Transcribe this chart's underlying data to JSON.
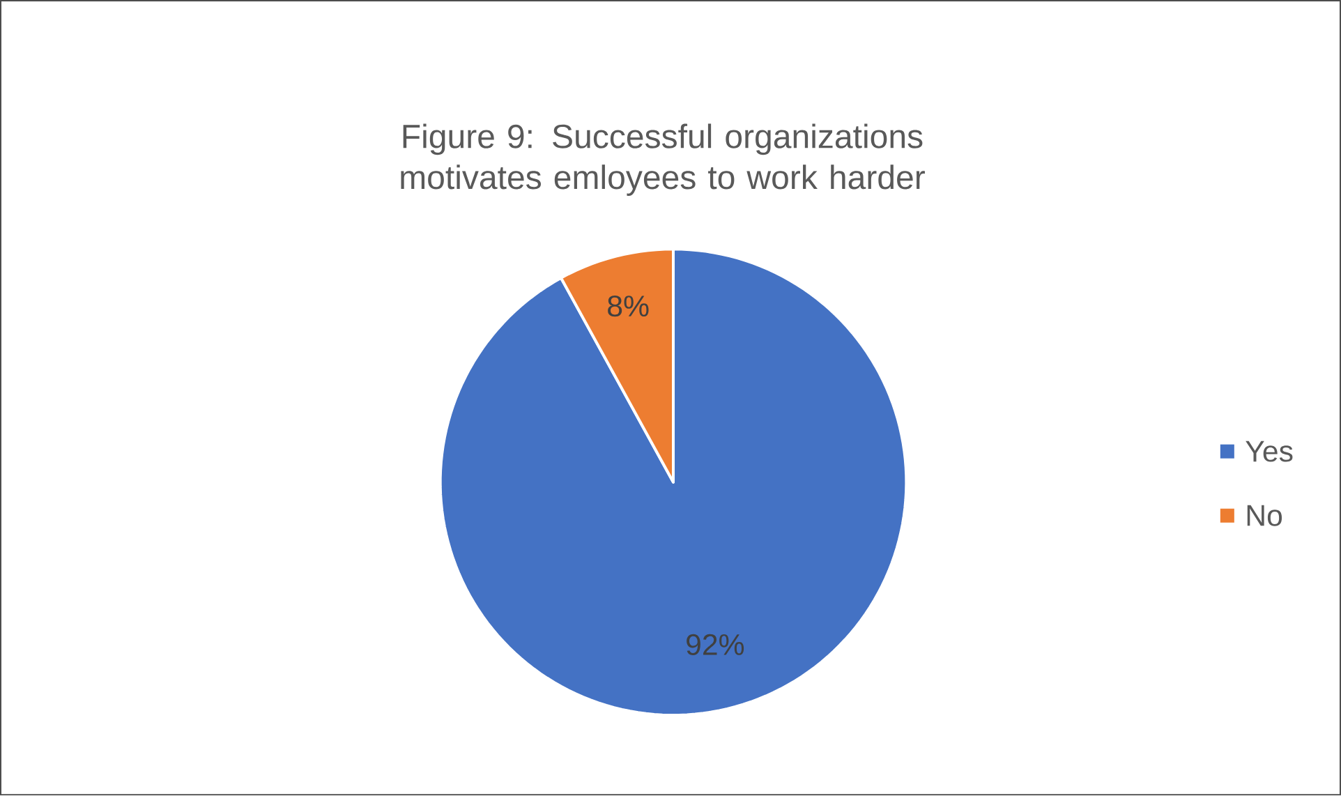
{
  "chart_data": {
    "type": "pie",
    "title": "Figure 9: Successful organizations motivates emloyees to work harder",
    "categories": [
      "Yes",
      "No"
    ],
    "values": [
      92,
      8
    ],
    "colors": [
      "#4472c4",
      "#ed7d31"
    ],
    "value_labels": [
      "92%",
      "8%"
    ],
    "legend": "right"
  }
}
